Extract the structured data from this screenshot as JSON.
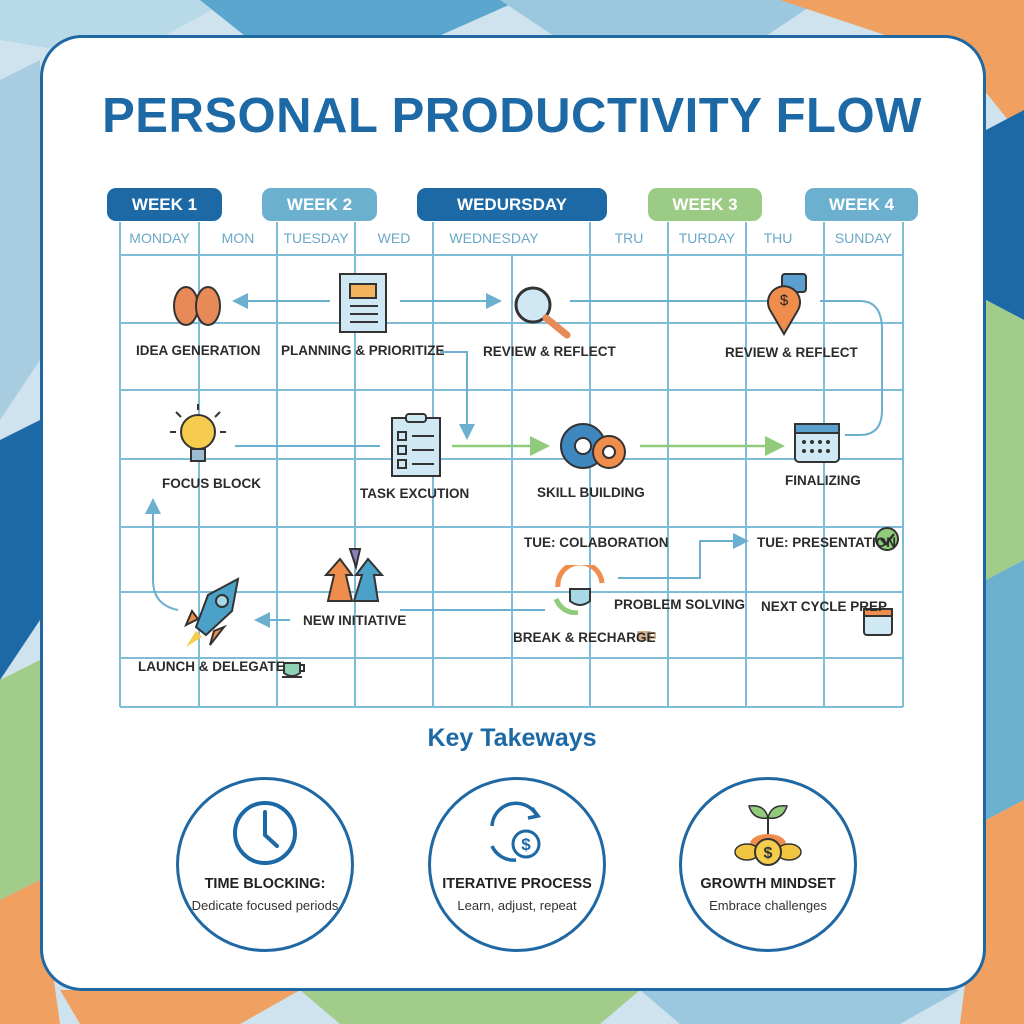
{
  "title": "PERSONAL PRODUCTIVITY FLOW",
  "weeks": [
    {
      "label": "WEEK 1",
      "color": "#1c69a6"
    },
    {
      "label": "WEEK 2",
      "color": "#6cb0cf"
    },
    {
      "label": "WEDURSDAY",
      "color": "#1c69a6"
    },
    {
      "label": "WEEK 3",
      "color": "#9ccb86"
    },
    {
      "label": "WEEK 4",
      "color": "#6cb0cf"
    }
  ],
  "days": [
    "MONDAY",
    "MON",
    "TUESDAY",
    "WED",
    "WEDNESDAY",
    "TRU",
    "TURDAY",
    "THU",
    "SUNDAY"
  ],
  "nodes": {
    "idea": "IDEA GENERATION",
    "planning": "PLANNING & PRIORITIZE",
    "review1": "REVIEW & REFLECT",
    "review2": "REVIEW & REFLECT",
    "focus": "FOCUS BLOCK",
    "task": "TASK EXCUTION",
    "skill": "SKILL BUILDING",
    "finalizing": "FINALIZING",
    "collab": "TUE: COLABORATION",
    "presentation": "TUE: PRESENTATION",
    "initiative": "NEW INITIATIVE",
    "problem": "PROBLEM SOLVING",
    "nextcycle": "NEXT CYCLE PREP",
    "break": "BREAK & RECHARGE",
    "launch": "LAUNCH & DELEGATE"
  },
  "takeaways": {
    "heading": "Key Takeways",
    "items": [
      {
        "title": "TIME BLOCKING:",
        "subtitle": "Dedicate focused periods",
        "icon": "clock-icon"
      },
      {
        "title": "ITERATIVE PROCESS",
        "subtitle": "Learn, adjust, repeat",
        "icon": "cycle-dollar-icon"
      },
      {
        "title": "GROWTH MINDSET",
        "subtitle": "Embrace challenges",
        "icon": "sprout-coins-icon"
      }
    ]
  },
  "colors": {
    "primary": "#1c69a6",
    "grid": "#7fbcd8",
    "orange": "#ec8a4a",
    "green": "#9ccb86"
  }
}
